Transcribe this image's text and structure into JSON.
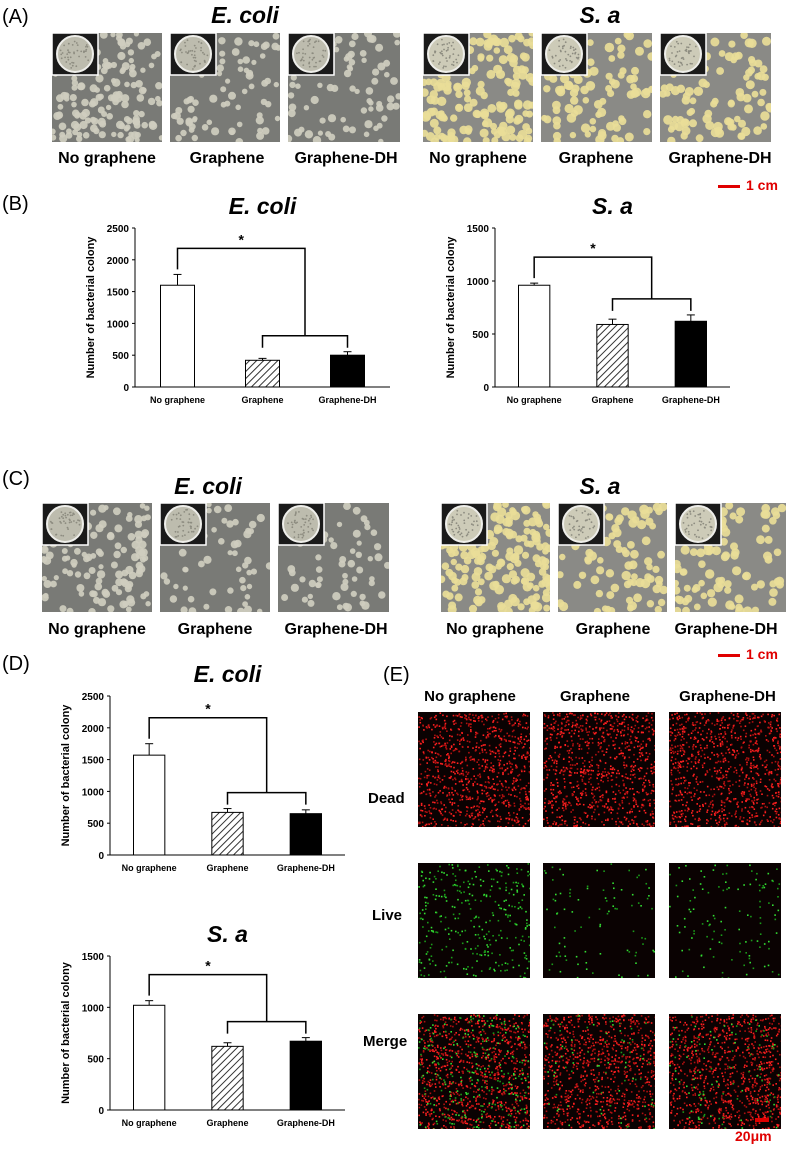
{
  "figure": {
    "panel_labels": {
      "a": "(A)",
      "b": "(B)",
      "c": "(C)",
      "d": "(D)",
      "e": "(E)"
    },
    "species": {
      "ecoli": "E. coli",
      "sa": "S. a"
    },
    "conditions": [
      "No graphene",
      "Graphene",
      "Graphene-DH"
    ],
    "scale_bar_cm": "1 cm",
    "scale_bar_um": "20μm",
    "fluorescence": {
      "columns": [
        "No graphene",
        "Graphene",
        "Graphene-DH"
      ],
      "rows": [
        "Dead",
        "Live",
        "Merge"
      ]
    },
    "colors": {
      "dead_stain": "#ff2020",
      "live_stain": "#22cc22",
      "scale_bar": "#e00000",
      "plate_bg": "#7f7f7f",
      "sa_colony": "#e8dc95",
      "ecoli_colony": "#d0cec0"
    }
  },
  "chart_data": [
    {
      "id": "B-ecoli",
      "type": "bar",
      "title": "E. coli",
      "ylabel": "Number of bacterial colony",
      "ylim": [
        0,
        2500
      ],
      "yticks": [
        0,
        500,
        1000,
        1500,
        2000,
        2500
      ],
      "categories": [
        "No graphene",
        "Graphene",
        "Graphene-DH"
      ],
      "values": [
        1600,
        420,
        500
      ],
      "errors": [
        170,
        30,
        55
      ],
      "fills": [
        "open",
        "hatched",
        "solid"
      ],
      "significance": "*"
    },
    {
      "id": "B-sa",
      "type": "bar",
      "title": "S. a",
      "ylabel": "Number of bacterial colony",
      "ylim": [
        0,
        1500
      ],
      "yticks": [
        0,
        500,
        1000,
        1500
      ],
      "categories": [
        "No graphene",
        "Graphene",
        "Graphene-DH"
      ],
      "values": [
        960,
        590,
        620
      ],
      "errors": [
        20,
        50,
        60
      ],
      "fills": [
        "open",
        "hatched",
        "solid"
      ],
      "significance": "*"
    },
    {
      "id": "D-ecoli",
      "type": "bar",
      "title": "E. coli",
      "ylabel": "Number of bacterial colony",
      "ylim": [
        0,
        2500
      ],
      "yticks": [
        0,
        500,
        1000,
        1500,
        2000,
        2500
      ],
      "categories": [
        "No graphene",
        "Graphene",
        "Graphene-DH"
      ],
      "values": [
        1570,
        670,
        650
      ],
      "errors": [
        180,
        60,
        60
      ],
      "fills": [
        "open",
        "hatched",
        "solid"
      ],
      "significance": "*"
    },
    {
      "id": "D-sa",
      "type": "bar",
      "title": "S. a",
      "ylabel": "Number of bacterial colony",
      "ylim": [
        0,
        1500
      ],
      "yticks": [
        0,
        500,
        1000,
        1500
      ],
      "categories": [
        "No graphene",
        "Graphene",
        "Graphene-DH"
      ],
      "values": [
        1020,
        620,
        670
      ],
      "errors": [
        45,
        35,
        35
      ],
      "fills": [
        "open",
        "hatched",
        "solid"
      ],
      "significance": "*"
    }
  ]
}
